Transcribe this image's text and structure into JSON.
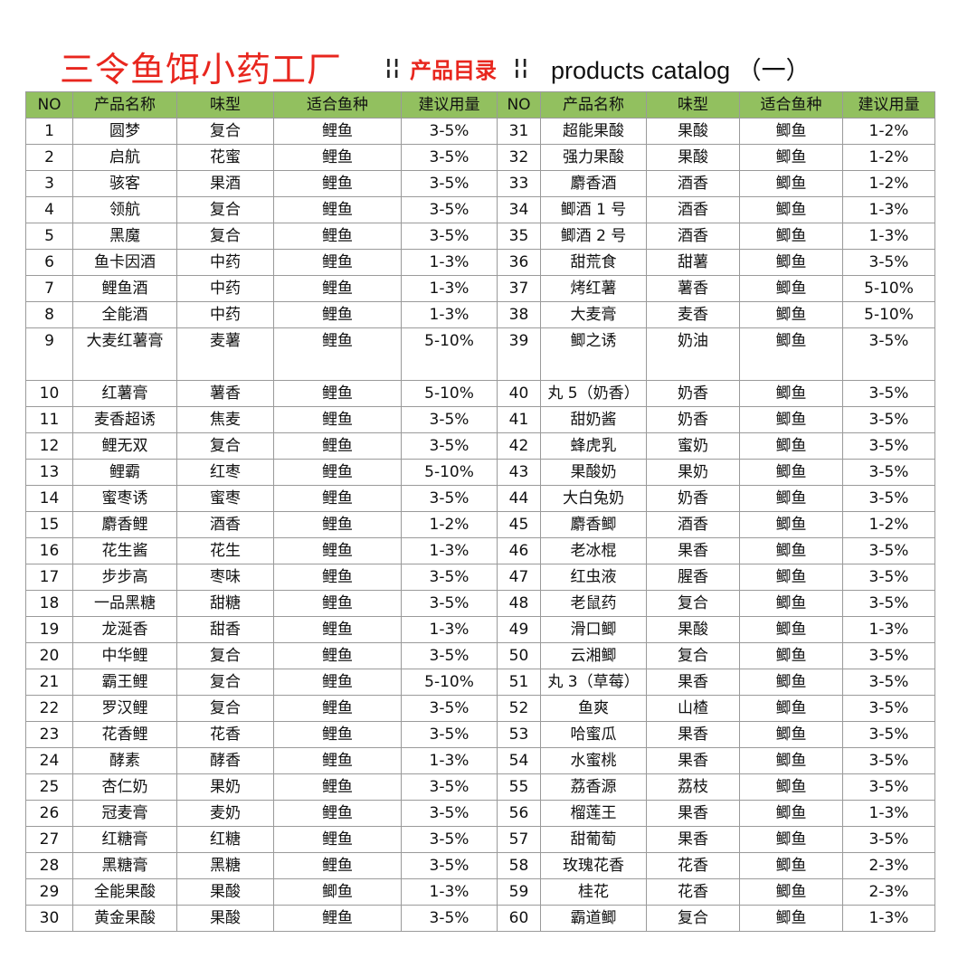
{
  "header": {
    "brand": "三令鱼饵小药工厂",
    "separator": "¦¦",
    "catalog_label": "产品目录",
    "catalog_en": "products catalog （一）"
  },
  "columns": [
    "NO",
    "产品名称",
    "味型",
    "适合鱼种",
    "建议用量"
  ],
  "left": [
    [
      "1",
      "圆梦",
      "复合",
      "鲤鱼",
      "3-5%"
    ],
    [
      "2",
      "启航",
      "花蜜",
      "鲤鱼",
      "3-5%"
    ],
    [
      "3",
      "骇客",
      "果酒",
      "鲤鱼",
      "3-5%"
    ],
    [
      "4",
      "领航",
      "复合",
      "鲤鱼",
      "3-5%"
    ],
    [
      "5",
      "黑魔",
      "复合",
      "鲤鱼",
      "3-5%"
    ],
    [
      "6",
      "鱼卡因酒",
      "中药",
      "鲤鱼",
      "1-3%"
    ],
    [
      "7",
      "鲤鱼酒",
      "中药",
      "鲤鱼",
      "1-3%"
    ],
    [
      "8",
      "全能酒",
      "中药",
      "鲤鱼",
      "1-3%"
    ],
    [
      "9",
      "大麦红薯膏",
      "麦薯",
      "鲤鱼",
      "5-10%"
    ],
    [
      "10",
      "红薯膏",
      "薯香",
      "鲤鱼",
      "5-10%"
    ],
    [
      "11",
      "麦香超诱",
      "焦麦",
      "鲤鱼",
      "3-5%"
    ],
    [
      "12",
      "鲤无双",
      "复合",
      "鲤鱼",
      "3-5%"
    ],
    [
      "13",
      "鲤霸",
      "红枣",
      "鲤鱼",
      "5-10%"
    ],
    [
      "14",
      "蜜枣诱",
      "蜜枣",
      "鲤鱼",
      "3-5%"
    ],
    [
      "15",
      "麝香鲤",
      "酒香",
      "鲤鱼",
      "1-2%"
    ],
    [
      "16",
      "花生酱",
      "花生",
      "鲤鱼",
      "1-3%"
    ],
    [
      "17",
      "步步高",
      "枣味",
      "鲤鱼",
      "3-5%"
    ],
    [
      "18",
      "一品黑糖",
      "甜糖",
      "鲤鱼",
      "3-5%"
    ],
    [
      "19",
      "龙涎香",
      "甜香",
      "鲤鱼",
      "1-3%"
    ],
    [
      "20",
      "中华鲤",
      "复合",
      "鲤鱼",
      "3-5%"
    ],
    [
      "21",
      "霸王鲤",
      "复合",
      "鲤鱼",
      "5-10%"
    ],
    [
      "22",
      "罗汉鲤",
      "复合",
      "鲤鱼",
      "3-5%"
    ],
    [
      "23",
      "花香鲤",
      "花香",
      "鲤鱼",
      "3-5%"
    ],
    [
      "24",
      "酵素",
      "酵香",
      "鲤鱼",
      "1-3%"
    ],
    [
      "25",
      "杏仁奶",
      "果奶",
      "鲤鱼",
      "3-5%"
    ],
    [
      "26",
      "冠麦膏",
      "麦奶",
      "鲤鱼",
      "3-5%"
    ],
    [
      "27",
      "红糖膏",
      "红糖",
      "鲤鱼",
      "3-5%"
    ],
    [
      "28",
      "黑糖膏",
      "黑糖",
      "鲤鱼",
      "3-5%"
    ],
    [
      "29",
      "全能果酸",
      "果酸",
      "鲫鱼",
      "1-3%"
    ],
    [
      "30",
      "黄金果酸",
      "果酸",
      "鲤鱼",
      "3-5%"
    ]
  ],
  "right": [
    [
      "31",
      "超能果酸",
      "果酸",
      "鲫鱼",
      "1-2%"
    ],
    [
      "32",
      "强力果酸",
      "果酸",
      "鲫鱼",
      "1-2%"
    ],
    [
      "33",
      "麝香酒",
      "酒香",
      "鲫鱼",
      "1-2%"
    ],
    [
      "34",
      "鲫酒 1 号",
      "酒香",
      "鲫鱼",
      "1-3%"
    ],
    [
      "35",
      "鲫酒 2 号",
      "酒香",
      "鲫鱼",
      "1-3%"
    ],
    [
      "36",
      "甜荒食",
      "甜薯",
      "鲫鱼",
      "3-5%"
    ],
    [
      "37",
      "烤红薯",
      "薯香",
      "鲫鱼",
      "5-10%"
    ],
    [
      "38",
      "大麦膏",
      "麦香",
      "鲫鱼",
      "5-10%"
    ],
    [
      "39",
      "鲫之诱",
      "奶油",
      "鲫鱼",
      "3-5%"
    ],
    [
      "40",
      "丸 5（奶香）",
      "奶香",
      "鲫鱼",
      "3-5%"
    ],
    [
      "41",
      "甜奶酱",
      "奶香",
      "鲫鱼",
      "3-5%"
    ],
    [
      "42",
      "蜂虎乳",
      "蜜奶",
      "鲫鱼",
      "3-5%"
    ],
    [
      "43",
      "果酸奶",
      "果奶",
      "鲫鱼",
      "3-5%"
    ],
    [
      "44",
      "大白兔奶",
      "奶香",
      "鲫鱼",
      "3-5%"
    ],
    [
      "45",
      "麝香鲫",
      "酒香",
      "鲫鱼",
      "1-2%"
    ],
    [
      "46",
      "老冰棍",
      "果香",
      "鲫鱼",
      "3-5%"
    ],
    [
      "47",
      "红虫液",
      "腥香",
      "鲫鱼",
      "3-5%"
    ],
    [
      "48",
      "老鼠药",
      "复合",
      "鲫鱼",
      "3-5%"
    ],
    [
      "49",
      "滑口鲫",
      "果酸",
      "鲫鱼",
      "1-3%"
    ],
    [
      "50",
      "云湘鲫",
      "复合",
      "鲫鱼",
      "3-5%"
    ],
    [
      "51",
      "丸 3（草莓）",
      "果香",
      "鲫鱼",
      "3-5%"
    ],
    [
      "52",
      "鱼爽",
      "山楂",
      "鲫鱼",
      "3-5%"
    ],
    [
      "53",
      "哈蜜瓜",
      "果香",
      "鲫鱼",
      "3-5%"
    ],
    [
      "54",
      "水蜜桃",
      "果香",
      "鲫鱼",
      "3-5%"
    ],
    [
      "55",
      "荔香源",
      "荔枝",
      "鲫鱼",
      "3-5%"
    ],
    [
      "56",
      "榴莲王",
      "果香",
      "鲫鱼",
      "1-3%"
    ],
    [
      "57",
      "甜葡萄",
      "果香",
      "鲫鱼",
      "3-5%"
    ],
    [
      "58",
      "玫瑰花香",
      "花香",
      "鲫鱼",
      "2-3%"
    ],
    [
      "59",
      "桂花",
      "花香",
      "鲫鱼",
      "2-3%"
    ],
    [
      "60",
      "霸道鲫",
      "复合",
      "鲫鱼",
      "1-3%"
    ]
  ]
}
